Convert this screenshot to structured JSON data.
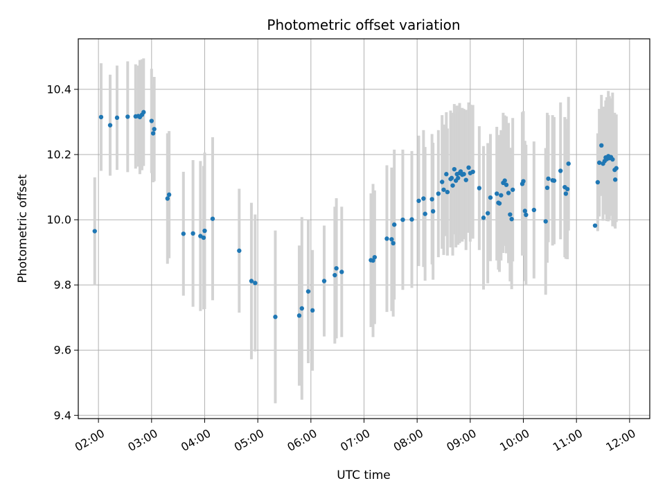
{
  "chart_data": {
    "type": "scatter",
    "title": "Photometric offset variation",
    "xlabel": "UTC time",
    "ylabel": "Photometric offset",
    "x_unit": "hours UTC",
    "xlim": [
      1.62,
      12.38
    ],
    "ylim": [
      9.39,
      10.555
    ],
    "x_ticks": [
      2,
      3,
      4,
      5,
      6,
      7,
      8,
      9,
      10,
      11,
      12
    ],
    "x_tick_labels": [
      "02:00",
      "03:00",
      "04:00",
      "05:00",
      "06:00",
      "07:00",
      "08:00",
      "09:00",
      "10:00",
      "11:00",
      "12:00"
    ],
    "y_ticks": [
      9.4,
      9.6,
      9.8,
      10.0,
      10.2,
      10.4
    ],
    "y_tick_labels": [
      "9.4",
      "9.6",
      "9.8",
      "10.0",
      "10.2",
      "10.4"
    ],
    "grid": true,
    "colors": {
      "point": "#1f77b4",
      "errorbar": "#d3d3d3",
      "grid": "#b0b0b0"
    },
    "series": [
      {
        "x": [
          1.93,
          2.05,
          2.22,
          2.35,
          2.55,
          2.7,
          2.75,
          2.78,
          2.82,
          2.85,
          3.0,
          3.03,
          3.05,
          3.3,
          3.33,
          3.6,
          3.78,
          3.92,
          3.98,
          4.0,
          4.15,
          4.65,
          4.88,
          4.95,
          5.33,
          5.78,
          5.83,
          5.95,
          6.03,
          6.25,
          6.45,
          6.48,
          6.58,
          7.13,
          7.17,
          7.2,
          7.43,
          7.52,
          7.55,
          7.57,
          7.73,
          7.9,
          8.03,
          8.12,
          8.15,
          8.28,
          8.3,
          8.4,
          8.47,
          8.5,
          8.55,
          8.57,
          8.63,
          8.65,
          8.67,
          8.7,
          8.73,
          8.75,
          8.77,
          8.8,
          8.82,
          8.85,
          8.88,
          8.92,
          8.97,
          9.0,
          9.05,
          9.17,
          9.25,
          9.33,
          9.38,
          9.5,
          9.53,
          9.55,
          9.58,
          9.62,
          9.65,
          9.68,
          9.72,
          9.75,
          9.78,
          9.8,
          9.98,
          10.0,
          10.03,
          10.05,
          10.2,
          10.42,
          10.45,
          10.47,
          10.55,
          10.58,
          10.7,
          10.78,
          10.8,
          10.83,
          10.85,
          11.35,
          11.4,
          11.43,
          11.47,
          11.5,
          11.53,
          11.55,
          11.57,
          11.6,
          11.62,
          11.65,
          11.68,
          11.72,
          11.73,
          11.75
        ],
        "y": [
          9.965,
          10.315,
          10.29,
          10.313,
          10.316,
          10.317,
          10.318,
          10.315,
          10.322,
          10.33,
          10.303,
          10.265,
          10.278,
          10.065,
          10.077,
          9.957,
          9.958,
          9.95,
          9.945,
          9.966,
          10.003,
          9.905,
          9.812,
          9.806,
          9.702,
          9.706,
          9.728,
          9.78,
          9.722,
          9.812,
          9.83,
          9.851,
          9.84,
          9.876,
          9.875,
          9.885,
          9.942,
          9.94,
          9.928,
          9.985,
          10.0,
          10.001,
          10.058,
          10.065,
          10.018,
          10.063,
          10.026,
          10.08,
          10.116,
          10.092,
          10.14,
          10.085,
          10.125,
          10.128,
          10.105,
          10.155,
          10.12,
          10.14,
          10.128,
          10.143,
          10.148,
          10.138,
          10.14,
          10.122,
          10.16,
          10.143,
          10.147,
          10.097,
          10.006,
          10.02,
          10.068,
          10.08,
          10.052,
          10.05,
          10.075,
          10.113,
          10.12,
          10.107,
          10.082,
          10.016,
          10.002,
          10.092,
          10.11,
          10.118,
          10.027,
          10.015,
          10.03,
          9.995,
          10.098,
          10.126,
          10.121,
          10.12,
          10.15,
          10.1,
          10.08,
          10.094,
          10.172,
          9.982,
          10.115,
          10.175,
          10.228,
          10.172,
          10.18,
          10.191,
          10.186,
          10.195,
          10.189,
          10.192,
          10.185,
          10.153,
          10.123,
          10.158
        ],
        "yerr": [
          0.165,
          0.165,
          0.155,
          0.16,
          0.17,
          0.16,
          0.155,
          0.175,
          0.17,
          0.165,
          0.16,
          0.15,
          0.16,
          0.2,
          0.195,
          0.19,
          0.225,
          0.23,
          0.22,
          0.24,
          0.25,
          0.19,
          0.24,
          0.21,
          0.265,
          0.215,
          0.28,
          0.22,
          0.185,
          0.17,
          0.21,
          0.215,
          0.2,
          0.205,
          0.235,
          0.205,
          0.225,
          0.22,
          0.225,
          0.23,
          0.215,
          0.21,
          0.2,
          0.21,
          0.205,
          0.2,
          0.21,
          0.195,
          0.205,
          0.2,
          0.19,
          0.195,
          0.21,
          0.2,
          0.215,
          0.2,
          0.205,
          0.21,
          0.205,
          0.215,
          0.195,
          0.205,
          0.2,
          0.215,
          0.2,
          0.21,
          0.205,
          0.19,
          0.22,
          0.215,
          0.195,
          0.205,
          0.205,
          0.21,
          0.2,
          0.215,
          0.2,
          0.21,
          0.215,
          0.205,
          0.215,
          0.22,
          0.22,
          0.215,
          0.215,
          0.215,
          0.21,
          0.225,
          0.23,
          0.195,
          0.2,
          0.195,
          0.21,
          0.215,
          0.2,
          0.215,
          0.205,
          0.005,
          0.15,
          0.165,
          0.155,
          0.175,
          0.16,
          0.175,
          0.19,
          0.2,
          0.19,
          0.18,
          0.205,
          0.175,
          0.15,
          0.165
        ]
      }
    ]
  }
}
